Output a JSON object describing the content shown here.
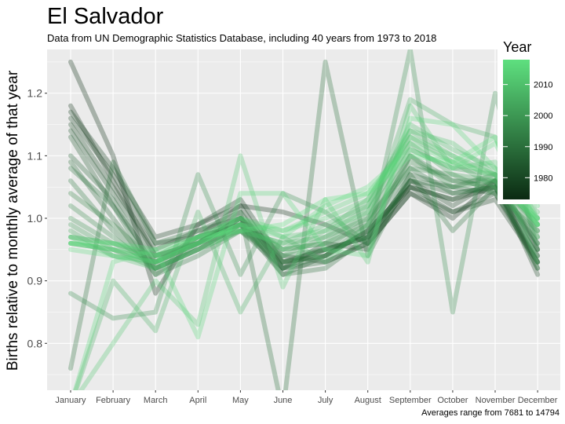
{
  "chart_data": {
    "type": "line",
    "title": "El Salvador",
    "subtitle": "Data from UN Demographic Statistics Database, including 40 years from 1973 to 2018",
    "caption": "Averages range from 7681 to 14794",
    "ylabel": "Births relative to monthly average of that year",
    "xlabel": "",
    "categories": [
      "January",
      "February",
      "March",
      "April",
      "May",
      "June",
      "July",
      "August",
      "September",
      "October",
      "November",
      "December"
    ],
    "ylim": [
      0.725,
      1.27
    ],
    "yticks": [
      0.8,
      0.9,
      1.0,
      1.1,
      1.2
    ],
    "ytick_labels": [
      "0.8",
      "0.9",
      "1.0",
      "1.1",
      "1.2"
    ],
    "grid": true,
    "legend": {
      "title": "Year",
      "placement": "right",
      "range": [
        1973,
        2018
      ],
      "ticks": [
        1980,
        1990,
        2000,
        2010
      ],
      "tick_labels": [
        "1980",
        "1990",
        "2000",
        "2010"
      ],
      "color_low": "#0b2a12",
      "color_high": "#5ee07f"
    },
    "colors": {
      "panel": "#ebebeb",
      "grid": "#ffffff"
    },
    "series": [
      {
        "year": 1973,
        "values": [
          1.25,
          1.1,
          0.88,
          0.99,
          1.02,
          1.01,
          0.99,
          0.96,
          1.04,
          1.0,
          1.06,
          0.95
        ]
      },
      {
        "year": 1975,
        "values": [
          1.18,
          1.06,
          0.94,
          0.96,
          1.0,
          0.93,
          0.95,
          0.97,
          1.05,
          1.03,
          1.05,
          0.93
        ]
      },
      {
        "year": 1977,
        "values": [
          1.17,
          1.08,
          0.97,
          0.99,
          1.03,
          0.93,
          0.94,
          0.98,
          1.05,
          1.01,
          1.03,
          0.93
        ]
      },
      {
        "year": 1979,
        "values": [
          1.16,
          1.07,
          0.96,
          0.97,
          1.02,
          0.92,
          0.96,
          0.95,
          1.06,
          1.02,
          1.06,
          0.91
        ]
      },
      {
        "year": 1981,
        "values": [
          1.15,
          1.05,
          0.95,
          0.98,
          1.0,
          0.94,
          0.93,
          0.96,
          1.04,
          1.01,
          1.04,
          0.93
        ]
      },
      {
        "year": 1983,
        "values": [
          1.14,
          1.04,
          0.94,
          0.96,
          1.01,
          0.92,
          0.95,
          0.97,
          1.06,
          1.04,
          1.05,
          0.94
        ]
      },
      {
        "year": 1985,
        "values": [
          1.13,
          1.02,
          0.93,
          0.97,
          0.99,
          0.91,
          0.94,
          0.98,
          1.05,
          1.03,
          1.06,
          0.92
        ]
      },
      {
        "year": 1987,
        "values": [
          1.1,
          1.03,
          0.92,
          0.95,
          0.99,
          0.92,
          0.93,
          0.96,
          1.07,
          1.05,
          1.04,
          0.94
        ]
      },
      {
        "year": 1989,
        "values": [
          1.09,
          1.0,
          0.91,
          0.96,
          1.0,
          0.91,
          0.92,
          0.97,
          1.06,
          1.05,
          1.07,
          0.95
        ]
      },
      {
        "year": 1990,
        "values": [
          0.76,
          1.09,
          0.96,
          0.98,
          1.01,
          0.69,
          1.25,
          0.94,
          1.07,
          0.98,
          1.05,
          0.92
        ]
      },
      {
        "year": 1991,
        "values": [
          1.08,
          1.02,
          0.91,
          0.94,
          0.98,
          0.92,
          0.94,
          0.98,
          1.08,
          1.04,
          1.05,
          0.96
        ]
      },
      {
        "year": 1993,
        "values": [
          1.06,
          0.98,
          0.92,
          0.95,
          0.99,
          0.93,
          0.95,
          0.97,
          1.1,
          1.06,
          1.06,
          0.96
        ]
      },
      {
        "year": 1995,
        "values": [
          1.04,
          0.99,
          0.93,
          0.96,
          0.98,
          0.93,
          0.94,
          0.99,
          1.09,
          1.06,
          1.05,
          0.97
        ]
      },
      {
        "year": 1997,
        "values": [
          1.02,
          0.97,
          0.92,
          0.97,
          0.99,
          0.94,
          0.95,
          1.0,
          1.08,
          1.07,
          1.04,
          0.98
        ]
      },
      {
        "year": 1998,
        "values": [
          0.88,
          0.84,
          0.85,
          1.07,
          0.91,
          1.04,
          1.01,
          0.96,
          1.27,
          0.85,
          1.2,
          0.95
        ]
      },
      {
        "year": 1999,
        "values": [
          1.0,
          0.96,
          0.93,
          0.96,
          1.0,
          0.95,
          0.96,
          0.99,
          1.1,
          1.05,
          1.06,
          0.98
        ]
      },
      {
        "year": 2001,
        "values": [
          0.99,
          0.95,
          0.92,
          0.95,
          0.98,
          0.94,
          0.97,
          1.0,
          1.11,
          1.08,
          1.07,
          0.99
        ]
      },
      {
        "year": 2003,
        "values": [
          0.98,
          0.94,
          0.93,
          0.96,
          0.99,
          0.95,
          0.96,
          1.01,
          1.12,
          1.07,
          1.06,
          0.99
        ]
      },
      {
        "year": 2005,
        "values": [
          0.97,
          0.96,
          0.94,
          0.97,
          0.98,
          0.96,
          0.97,
          1.02,
          1.13,
          1.09,
          1.05,
          1.0
        ]
      },
      {
        "year": 2006,
        "values": [
          0.7,
          0.9,
          0.82,
          1.01,
          0.85,
          0.97,
          0.93,
          0.99,
          1.19,
          1.15,
          1.13,
          0.97
        ]
      },
      {
        "year": 2007,
        "values": [
          0.96,
          0.95,
          0.93,
          0.96,
          0.99,
          0.95,
          0.98,
          1.03,
          1.14,
          1.1,
          1.07,
          1.01
        ]
      },
      {
        "year": 2009,
        "values": [
          0.97,
          0.94,
          0.92,
          0.95,
          0.98,
          0.96,
          0.99,
          1.02,
          1.15,
          1.11,
          1.08,
          1.0
        ]
      },
      {
        "year": 2011,
        "values": [
          0.96,
          0.95,
          0.93,
          0.97,
          1.0,
          0.97,
          0.98,
          1.01,
          1.14,
          1.12,
          1.07,
          0.99
        ]
      },
      {
        "year": 2012,
        "values": [
          0.7,
          0.8,
          0.9,
          0.83,
          1.1,
          0.89,
          1.03,
          0.93,
          1.18,
          1.08,
          1.09,
          0.93
        ]
      },
      {
        "year": 2013,
        "values": [
          0.97,
          0.96,
          0.94,
          0.96,
          0.99,
          0.98,
          1.0,
          1.03,
          1.13,
          1.1,
          1.06,
          1.0
        ]
      },
      {
        "year": 2015,
        "values": [
          0.96,
          0.95,
          0.94,
          0.97,
          1.0,
          0.98,
          1.01,
          1.04,
          1.12,
          1.09,
          1.07,
          0.99
        ]
      },
      {
        "year": 2016,
        "values": [
          0.7,
          0.93,
          0.95,
          0.81,
          1.04,
          1.04,
          0.95,
          0.94,
          1.16,
          1.15,
          1.08,
          1.02
        ]
      },
      {
        "year": 2017,
        "values": [
          0.95,
          0.94,
          0.93,
          0.96,
          0.99,
          0.97,
          1.02,
          1.05,
          1.11,
          1.08,
          1.12,
          1.0
        ]
      },
      {
        "year": 2018,
        "values": [
          0.96,
          0.96,
          0.95,
          0.97,
          0.98,
          0.99,
          1.03,
          1.04,
          1.1,
          1.09,
          1.13,
          0.99
        ]
      }
    ]
  }
}
